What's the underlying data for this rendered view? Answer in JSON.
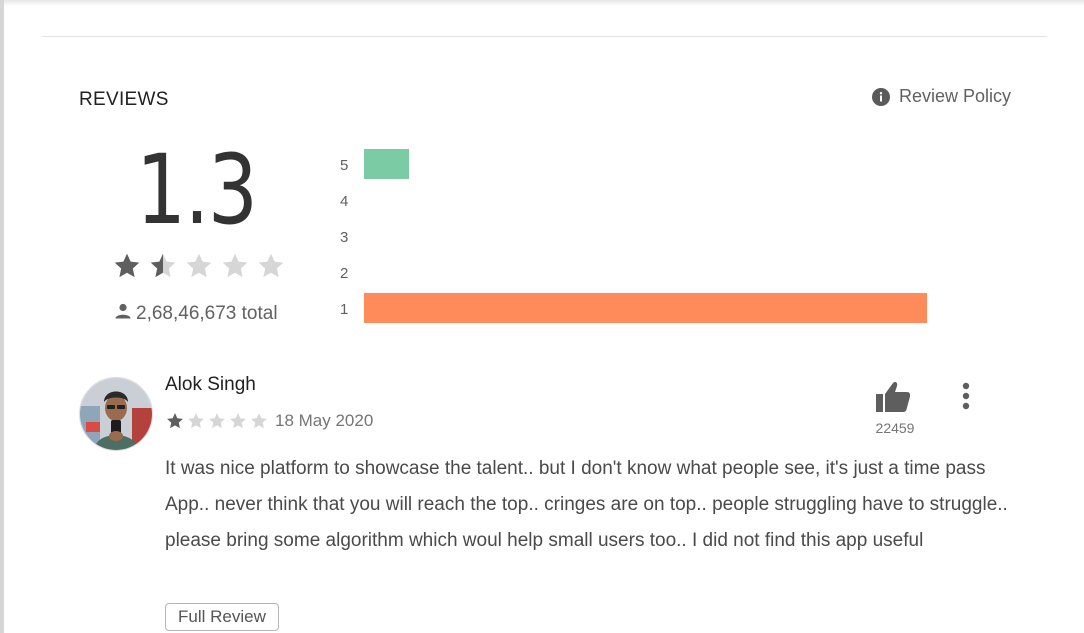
{
  "section": {
    "title": "REVIEWS",
    "policy_label": "Review Policy",
    "policy_icon": "info-icon"
  },
  "summary": {
    "average": "1.3",
    "rating_value": 1.3,
    "max_stars": 5,
    "total_label": "2,68,46,673 total",
    "user_icon": "person-icon"
  },
  "histogram": {
    "rows": [
      {
        "label": "5",
        "fraction": 0.08,
        "color": "#7bcca4"
      },
      {
        "label": "4",
        "fraction": 0.0,
        "color": "#b3d77b"
      },
      {
        "label": "3",
        "fraction": 0.0,
        "color": "#ffd54f"
      },
      {
        "label": "2",
        "fraction": 0.0,
        "color": "#ffb24a"
      },
      {
        "label": "1",
        "fraction": 1.0,
        "color": "#ff8b5a"
      }
    ]
  },
  "review": {
    "author": "Alok Singh",
    "stars": 1,
    "date": "18 May 2020",
    "helpful_count": "22459",
    "text": "It was nice platform to showcase the talent.. but I don't know what people see, it's just a time pass App.. never think that you will reach the top.. cringes are on top.. people struggling have to struggle.. please bring some algorithm which woul help small users too.. I did not find this app useful",
    "full_review_label": "Full Review"
  },
  "colors": {
    "star_filled": "#5e5e5e",
    "star_empty": "#d6d6d6"
  }
}
